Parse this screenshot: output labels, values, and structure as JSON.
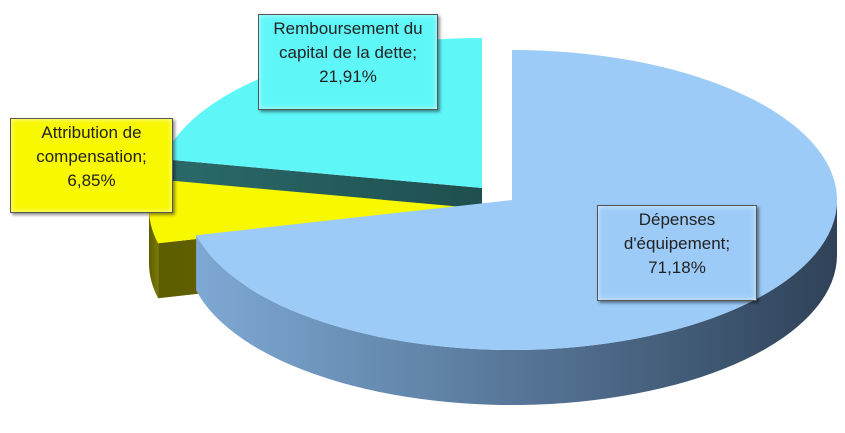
{
  "chart_data": {
    "type": "pie",
    "values": [
      71.18,
      6.85,
      21.91
    ],
    "value_labels": [
      "Dépenses d'équipement; 71,18%",
      "Attribution de compensation; 6,85%",
      "Remboursement du capital de la dette; 21,91%"
    ],
    "colors": [
      "#9ccbf8",
      "#f8f800",
      "#5ff6f8"
    ]
  }
}
